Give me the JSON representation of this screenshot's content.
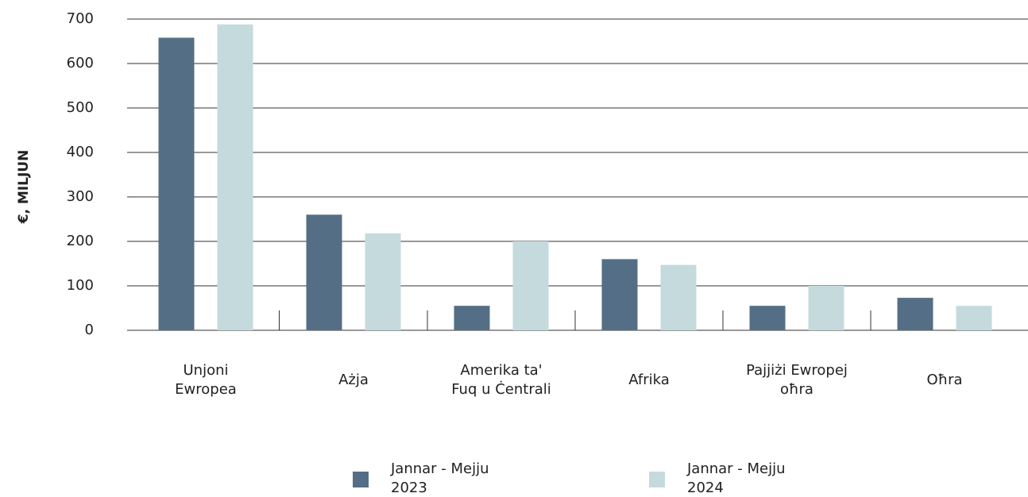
{
  "chart_data": {
    "type": "bar",
    "y_label": "€, MILJUN",
    "categories": [
      "Unjoni\nEwropea",
      "Ażja",
      "Amerika ta'\nFuq u Ċentrali",
      "Afrika",
      "Pajjiżi Ewropej\noħra",
      "Oħra"
    ],
    "series": [
      {
        "name": "Jannar - Mejju\n2023",
        "color": "#546e85",
        "values": [
          658,
          260,
          55,
          160,
          55,
          73
        ]
      },
      {
        "name": "Jannar - Mejju\n2024",
        "color": "#c5dadd",
        "values": [
          688,
          218,
          200,
          147,
          100,
          55
        ]
      }
    ],
    "ylim": [
      0,
      700
    ],
    "yticks": [
      0,
      100,
      200,
      300,
      400,
      500,
      600,
      700
    ],
    "grid": true
  }
}
